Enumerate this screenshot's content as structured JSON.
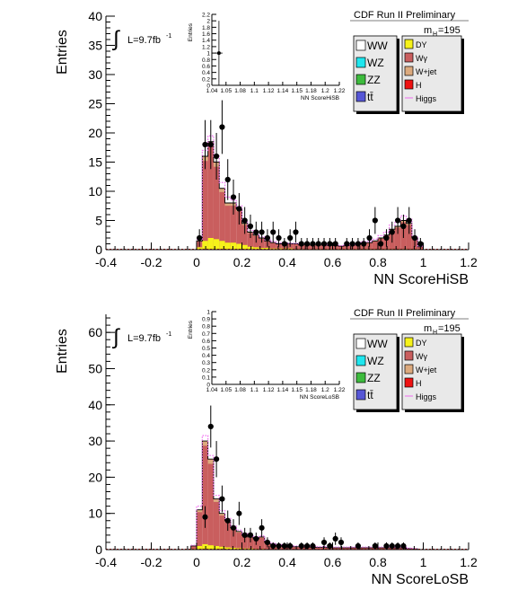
{
  "palette": {
    "WW": "#ffffff",
    "WZ": "#1fe6ee",
    "ZZ": "#3dbb3d",
    "ttbar": "#5656d6",
    "DY": "#f6f21a",
    "Wgamma": "#c95e5e",
    "Wjet": "#dcaa7e",
    "H": "#ee1111",
    "Higgs": "#f06cf0",
    "data": "#000000"
  },
  "legend": {
    "left": [
      {
        "key": "WW",
        "label": "WW",
        "color": "#ffffff"
      },
      {
        "key": "WZ",
        "label": "WZ",
        "color": "#1fe6ee"
      },
      {
        "key": "ZZ",
        "label": "ZZ",
        "color": "#3dbb3d"
      },
      {
        "key": "ttbar",
        "label": "tt̄",
        "color": "#5656d6"
      }
    ],
    "right": [
      {
        "key": "DY",
        "label": "DY",
        "color": "#f6f21a"
      },
      {
        "key": "Wgamma",
        "label": "Wγ",
        "color": "#c95e5e"
      },
      {
        "key": "Wjet",
        "label": "W+jet",
        "color": "#dcaa7e"
      },
      {
        "key": "H",
        "label": "H",
        "color": "#ee1111"
      },
      {
        "key": "Higgs",
        "label": "Higgs",
        "color": "#f06cf0",
        "line": true
      }
    ]
  },
  "chart_data": [
    {
      "type": "bar",
      "name": "HiSB",
      "header": "CDF Run II Preliminary",
      "mass_label": "m",
      "mass_sub": "H",
      "mass_value": "=195",
      "lumi": "L=9.7fb",
      "lumi_sup": "-1",
      "integral_symbol": "∫",
      "xlabel": "NN ScoreHiSB",
      "ylabel": "Entries",
      "xlim": [
        -0.4,
        1.2
      ],
      "ylim": [
        0,
        40
      ],
      "xticks": [
        -0.4,
        -0.2,
        0,
        0.2,
        0.4,
        0.6,
        0.8,
        1,
        1.2
      ],
      "xtick_labels": [
        "-0.4",
        "-0.2",
        "0",
        "0.2",
        "0.4",
        "0.6",
        "0.8",
        "1",
        "1.2"
      ],
      "yticks": [
        0,
        5,
        10,
        15,
        20,
        25,
        30,
        35,
        40
      ],
      "ytick_labels": [
        "0",
        "5",
        "10",
        "15",
        "20",
        "25",
        "30",
        "35",
        "40"
      ],
      "bin_width": 0.025,
      "bins_x": [
        0.0,
        0.025,
        0.05,
        0.075,
        0.1,
        0.125,
        0.15,
        0.175,
        0.2,
        0.225,
        0.25,
        0.275,
        0.3,
        0.325,
        0.35,
        0.375,
        0.4,
        0.425,
        0.45,
        0.475,
        0.5,
        0.525,
        0.55,
        0.575,
        0.6,
        0.625,
        0.65,
        0.675,
        0.7,
        0.725,
        0.75,
        0.775,
        0.8,
        0.825,
        0.85,
        0.875,
        0.9,
        0.925,
        0.95,
        0.975
      ],
      "stack_total": [
        1.5,
        16.0,
        18.5,
        15.0,
        10.5,
        8.0,
        8.0,
        7.0,
        4.5,
        3.0,
        2.5,
        2.0,
        1.5,
        1.2,
        1.0,
        1.0,
        1.0,
        1.0,
        0.8,
        0.8,
        0.8,
        0.8,
        0.8,
        0.7,
        0.7,
        0.6,
        0.7,
        0.8,
        1.0,
        1.2,
        1.2,
        1.5,
        2.0,
        2.5,
        3.5,
        4.0,
        5.0,
        4.5,
        2.0,
        0.5
      ],
      "dy_band": [
        0.4,
        1.5,
        2.0,
        1.8,
        1.5,
        1.2,
        1.2,
        1.0,
        0.8,
        0.5,
        0.4,
        0.3,
        0.3,
        0.2,
        0.2,
        0.2,
        0.2,
        0.1,
        0.1,
        0.1,
        0.1,
        0.1,
        0.1,
        0.1,
        0.1,
        0.1,
        0.1,
        0.1,
        0.1,
        0.1,
        0.1,
        0.1,
        0.1,
        0.1,
        0.1,
        0.1,
        0.1,
        0.1,
        0.1,
        0.0
      ],
      "higgs_line": [
        1.8,
        17.0,
        19.5,
        16.0,
        11.5,
        9.0,
        8.5,
        7.5,
        5.0,
        3.3,
        2.8,
        2.2,
        1.7,
        1.4,
        1.2,
        1.1,
        1.1,
        1.1,
        0.9,
        0.9,
        0.9,
        0.9,
        0.9,
        0.8,
        0.8,
        0.7,
        0.8,
        0.9,
        1.1,
        1.4,
        1.4,
        1.8,
        2.4,
        3.0,
        4.2,
        4.8,
        5.8,
        5.2,
        2.3,
        0.6
      ],
      "data_points": [
        {
          "x": 0.0,
          "y": 2,
          "err": 1.5
        },
        {
          "x": 0.025,
          "y": 18,
          "err": 4.2
        },
        {
          "x": 0.05,
          "y": 18,
          "err": 4.2
        },
        {
          "x": 0.075,
          "y": 16,
          "err": 4.0
        },
        {
          "x": 0.1,
          "y": 21,
          "err": 4.6
        },
        {
          "x": 0.125,
          "y": 12,
          "err": 3.5
        },
        {
          "x": 0.15,
          "y": 9,
          "err": 3.0
        },
        {
          "x": 0.175,
          "y": 7,
          "err": 2.7
        },
        {
          "x": 0.2,
          "y": 5,
          "err": 2.3
        },
        {
          "x": 0.225,
          "y": 4,
          "err": 2.0
        },
        {
          "x": 0.25,
          "y": 3,
          "err": 1.8
        },
        {
          "x": 0.275,
          "y": 3,
          "err": 1.8
        },
        {
          "x": 0.3,
          "y": 2,
          "err": 1.5
        },
        {
          "x": 0.325,
          "y": 3,
          "err": 1.8
        },
        {
          "x": 0.35,
          "y": 2,
          "err": 1.5
        },
        {
          "x": 0.375,
          "y": 1,
          "err": 1.0
        },
        {
          "x": 0.4,
          "y": 2,
          "err": 1.5
        },
        {
          "x": 0.425,
          "y": 3,
          "err": 1.8
        },
        {
          "x": 0.45,
          "y": 1,
          "err": 1.0
        },
        {
          "x": 0.475,
          "y": 1,
          "err": 1.0
        },
        {
          "x": 0.5,
          "y": 1,
          "err": 1.0
        },
        {
          "x": 0.525,
          "y": 1,
          "err": 1.0
        },
        {
          "x": 0.55,
          "y": 1,
          "err": 1.0
        },
        {
          "x": 0.575,
          "y": 1,
          "err": 1.0
        },
        {
          "x": 0.6,
          "y": 1,
          "err": 1.0
        },
        {
          "x": 0.65,
          "y": 1,
          "err": 1.0
        },
        {
          "x": 0.675,
          "y": 1,
          "err": 1.0
        },
        {
          "x": 0.7,
          "y": 1,
          "err": 1.0
        },
        {
          "x": 0.725,
          "y": 1,
          "err": 1.0
        },
        {
          "x": 0.75,
          "y": 2,
          "err": 1.5
        },
        {
          "x": 0.775,
          "y": 5,
          "err": 2.3
        },
        {
          "x": 0.8,
          "y": 1,
          "err": 1.0
        },
        {
          "x": 0.825,
          "y": 2,
          "err": 1.5
        },
        {
          "x": 0.85,
          "y": 3,
          "err": 1.8
        },
        {
          "x": 0.875,
          "y": 5,
          "err": 2.3
        },
        {
          "x": 0.9,
          "y": 4,
          "err": 2.0
        },
        {
          "x": 0.925,
          "y": 5,
          "err": 2.3
        },
        {
          "x": 0.95,
          "y": 2,
          "err": 1.5
        },
        {
          "x": 0.975,
          "y": 1,
          "err": 1.0
        }
      ],
      "inset": {
        "xlabel": "NN ScoreHiSB",
        "ylabel": "Entries",
        "xlim": [
          1.04,
          1.22
        ],
        "ylim": [
          0,
          2.2
        ],
        "xtick_labels": [
          "1.04",
          "1.05",
          "1.08",
          "1.1",
          "1.12",
          "1.14",
          "1.15",
          "1.18",
          "1.2",
          "1.22"
        ],
        "ytick_labels": [
          "0",
          "0.2",
          "0.4",
          "0.6",
          "0.8",
          "1",
          "1.2",
          "1.4",
          "1.6",
          "1.8",
          "2",
          "2.2"
        ],
        "points": [
          {
            "x": 1.05,
            "y": 1,
            "err": 1
          }
        ]
      }
    },
    {
      "type": "bar",
      "name": "LoSB",
      "header": "CDF Run II Preliminary",
      "mass_label": "m",
      "mass_sub": "H",
      "mass_value": "=195",
      "lumi": "L=9.7fb",
      "lumi_sup": "-1",
      "integral_symbol": "∫",
      "xlabel": "NN ScoreLoSB",
      "ylabel": "Entries",
      "xlim": [
        -0.4,
        1.2
      ],
      "ylim": [
        0,
        65
      ],
      "xticks": [
        -0.4,
        -0.2,
        0,
        0.2,
        0.4,
        0.6,
        0.8,
        1,
        1.2
      ],
      "xtick_labels": [
        "-0.4",
        "-0.2",
        "0",
        "0.2",
        "0.4",
        "0.6",
        "0.8",
        "1",
        "1.2"
      ],
      "yticks": [
        0,
        10,
        20,
        30,
        40,
        50,
        60
      ],
      "ytick_labels": [
        "0",
        "10",
        "20",
        "30",
        "40",
        "50",
        "60"
      ],
      "bin_width": 0.025,
      "bins_x": [
        -0.025,
        0.0,
        0.025,
        0.05,
        0.075,
        0.1,
        0.125,
        0.15,
        0.175,
        0.2,
        0.225,
        0.25,
        0.275,
        0.3,
        0.325,
        0.35,
        0.375,
        0.4,
        0.425,
        0.45,
        0.475,
        0.5,
        0.525,
        0.55,
        0.575,
        0.6,
        0.625,
        0.65,
        0.675,
        0.7,
        0.725,
        0.75,
        0.775,
        0.8,
        0.825,
        0.85,
        0.875,
        0.9,
        0.925,
        0.95
      ],
      "stack_total": [
        1.0,
        11.0,
        30.0,
        25.0,
        14.0,
        10.0,
        8.0,
        6.0,
        5.0,
        4.0,
        3.5,
        3.0,
        3.5,
        2.0,
        1.5,
        1.2,
        1.0,
        1.0,
        0.8,
        0.8,
        0.7,
        0.7,
        0.6,
        0.6,
        0.5,
        0.5,
        0.5,
        0.5,
        0.5,
        0.5,
        0.5,
        0.5,
        0.5,
        0.5,
        0.5,
        0.5,
        0.5,
        0.5,
        0.3,
        0.2
      ],
      "dy_band": [
        0.2,
        1.0,
        1.5,
        1.2,
        1.0,
        0.8,
        0.6,
        0.5,
        0.4,
        0.3,
        0.3,
        0.2,
        0.2,
        0.1,
        0.1,
        0.1,
        0.1,
        0.1,
        0.1,
        0.1,
        0.1,
        0.1,
        0.0,
        0.0,
        0.0,
        0.0,
        0.0,
        0.0,
        0.0,
        0.0,
        0.0,
        0.0,
        0.0,
        0.0,
        0.0,
        0.0,
        0.0,
        0.0,
        0.0,
        0.0
      ],
      "higgs_line": [
        1.2,
        12.0,
        31.5,
        26.0,
        15.0,
        10.8,
        8.6,
        6.5,
        5.4,
        4.4,
        3.8,
        3.3,
        3.8,
        2.2,
        1.7,
        1.4,
        1.2,
        1.2,
        1.0,
        1.0,
        0.9,
        0.9,
        0.8,
        0.8,
        0.7,
        0.7,
        0.7,
        0.7,
        0.7,
        0.7,
        0.7,
        0.7,
        0.7,
        0.7,
        0.7,
        0.7,
        0.7,
        0.7,
        0.4,
        0.3
      ],
      "data_points": [
        {
          "x": 0.025,
          "y": 9,
          "err": 3.0
        },
        {
          "x": 0.05,
          "y": 34,
          "err": 5.8
        },
        {
          "x": 0.075,
          "y": 25,
          "err": 5.0
        },
        {
          "x": 0.1,
          "y": 14,
          "err": 3.7
        },
        {
          "x": 0.125,
          "y": 8,
          "err": 2.8
        },
        {
          "x": 0.15,
          "y": 6,
          "err": 2.4
        },
        {
          "x": 0.175,
          "y": 10,
          "err": 3.2
        },
        {
          "x": 0.2,
          "y": 4,
          "err": 2.0
        },
        {
          "x": 0.225,
          "y": 4,
          "err": 2.0
        },
        {
          "x": 0.25,
          "y": 3,
          "err": 1.7
        },
        {
          "x": 0.275,
          "y": 6,
          "err": 2.4
        },
        {
          "x": 0.3,
          "y": 2,
          "err": 1.4
        },
        {
          "x": 0.325,
          "y": 1,
          "err": 1.0
        },
        {
          "x": 0.35,
          "y": 1,
          "err": 1.0
        },
        {
          "x": 0.375,
          "y": 1,
          "err": 1.0
        },
        {
          "x": 0.4,
          "y": 1,
          "err": 1.0
        },
        {
          "x": 0.45,
          "y": 1,
          "err": 1.0
        },
        {
          "x": 0.475,
          "y": 1,
          "err": 1.0
        },
        {
          "x": 0.5,
          "y": 1,
          "err": 1.0
        },
        {
          "x": 0.55,
          "y": 2,
          "err": 1.4
        },
        {
          "x": 0.575,
          "y": 1,
          "err": 1.0
        },
        {
          "x": 0.6,
          "y": 3,
          "err": 1.7
        },
        {
          "x": 0.625,
          "y": 2,
          "err": 1.4
        },
        {
          "x": 0.7,
          "y": 1,
          "err": 1.0
        },
        {
          "x": 0.775,
          "y": 1,
          "err": 1.0
        },
        {
          "x": 0.825,
          "y": 1,
          "err": 1.0
        },
        {
          "x": 0.85,
          "y": 1,
          "err": 1.0
        },
        {
          "x": 0.875,
          "y": 1,
          "err": 1.0
        },
        {
          "x": 0.9,
          "y": 1,
          "err": 1.0
        }
      ],
      "inset": {
        "xlabel": "NN ScoreLoSB",
        "ylabel": "Entries",
        "xlim": [
          1.04,
          1.22
        ],
        "ylim": [
          0,
          1.0
        ],
        "xtick_labels": [
          "1.04",
          "1.05",
          "1.08",
          "1.1",
          "1.12",
          "1.14",
          "1.15",
          "1.18",
          "1.2",
          "1.22"
        ],
        "ytick_labels": [
          "0",
          "0.1",
          "0.2",
          "0.3",
          "0.4",
          "0.5",
          "0.6",
          "0.7",
          "0.8",
          "0.9",
          "1"
        ],
        "points": []
      }
    }
  ]
}
